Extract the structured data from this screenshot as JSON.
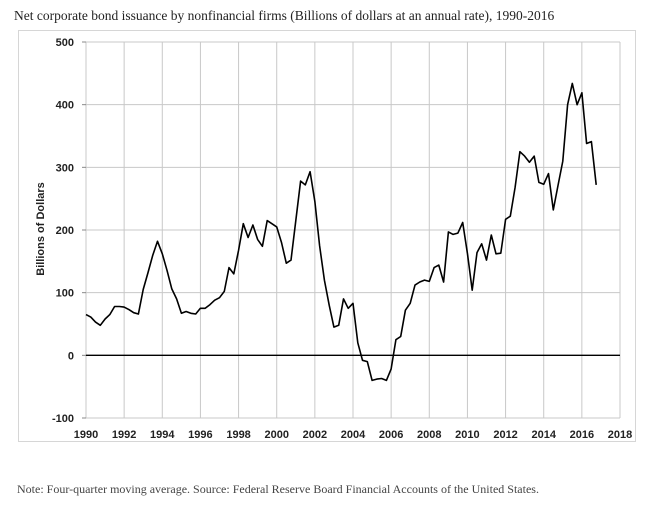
{
  "title": "Net corporate bond issuance by nonfinancial firms (Billions of dollars at an annual rate), 1990-2016",
  "note": "Note: Four-quarter moving average. Source: Federal Reserve Board Financial Accounts of the United States.",
  "chart_data": {
    "type": "line",
    "title": "Net corporate bond issuance by nonfinancial firms (Billions of dollars at an annual rate), 1990-2016",
    "xlabel": "",
    "ylabel": "Billions of Dollars",
    "xlim": [
      1990,
      2018
    ],
    "ylim": [
      -100,
      500
    ],
    "xticks": [
      "1990",
      "1992",
      "1994",
      "1996",
      "1998",
      "2000",
      "2002",
      "2004",
      "2006",
      "2008",
      "2010",
      "2012",
      "2014",
      "2016",
      "2018"
    ],
    "yticks": [
      "500",
      "400",
      "300",
      "200",
      "100",
      "0",
      "-100"
    ],
    "grid": true,
    "line_color": "#000000",
    "series": [
      {
        "x": [
          1990.0,
          1990.25,
          1990.5,
          1990.75,
          1991.0,
          1991.25,
          1991.5,
          1991.75,
          1992.0,
          1992.25,
          1992.5,
          1992.75,
          1993.0,
          1993.25,
          1993.5,
          1993.75,
          1994.0,
          1994.25,
          1994.5,
          1994.75,
          1995.0,
          1995.25,
          1995.5,
          1995.75,
          1996.0,
          1996.25,
          1996.5,
          1996.75,
          1997.0,
          1997.25,
          1997.5,
          1997.75,
          1998.0,
          1998.25,
          1998.5,
          1998.75,
          1999.0,
          1999.25,
          1999.5,
          1999.75,
          2000.0,
          2000.25,
          2000.5,
          2000.75,
          2001.0,
          2001.25,
          2001.5,
          2001.75,
          2002.0,
          2002.25,
          2002.5,
          2002.75,
          2003.0,
          2003.25,
          2003.5,
          2003.75,
          2004.0,
          2004.25,
          2004.5,
          2004.75,
          2005.0,
          2005.25,
          2005.5,
          2005.75,
          2006.0,
          2006.25,
          2006.5,
          2006.75,
          2007.0,
          2007.25,
          2007.5,
          2007.75,
          2008.0,
          2008.25,
          2008.5,
          2008.75,
          2009.0,
          2009.25,
          2009.5,
          2009.75,
          2010.0,
          2010.25,
          2010.5,
          2010.75,
          2011.0,
          2011.25,
          2011.5,
          2011.75,
          2012.0,
          2012.25,
          2012.5,
          2012.75,
          2013.0,
          2013.25,
          2013.5,
          2013.75,
          2014.0,
          2014.25,
          2014.5,
          2014.75,
          2015.0,
          2015.25,
          2015.5,
          2015.75,
          2016.0,
          2016.25,
          2016.5,
          2016.75
        ],
        "values": [
          65,
          61,
          53,
          48,
          58,
          65,
          78,
          78,
          77,
          73,
          68,
          66,
          105,
          132,
          160,
          182,
          162,
          135,
          106,
          90,
          67,
          70,
          67,
          66,
          75,
          75,
          81,
          88,
          92,
          102,
          140,
          130,
          168,
          210,
          188,
          208,
          185,
          174,
          215,
          210,
          205,
          180,
          147,
          152,
          215,
          278,
          272,
          293,
          245,
          175,
          120,
          80,
          45,
          48,
          90,
          75,
          83,
          20,
          -8,
          -10,
          -40,
          -38,
          -37,
          -40,
          -22,
          25,
          30,
          72,
          83,
          112,
          117,
          120,
          118,
          140,
          144,
          117,
          197,
          193,
          195,
          212,
          163,
          104,
          164,
          178,
          152,
          192,
          162,
          163,
          217,
          222,
          268,
          325,
          318,
          308,
          318,
          276,
          273,
          290,
          232,
          271,
          310,
          400,
          434,
          400,
          419,
          338,
          341,
          272
        ]
      }
    ]
  }
}
